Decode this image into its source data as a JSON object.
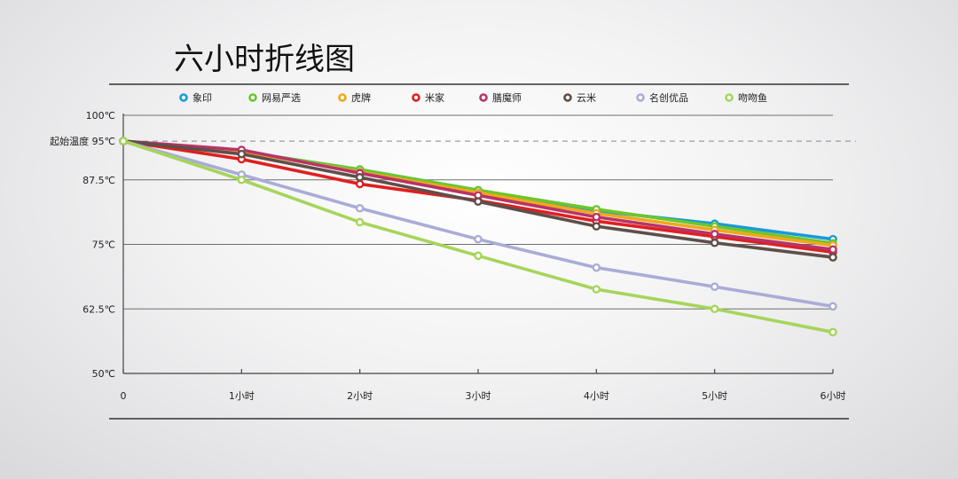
{
  "chart_data": {
    "type": "line",
    "title": "六小时折线图",
    "x": [
      "0",
      "1小时",
      "2小时",
      "3小时",
      "4小时",
      "5小时",
      "6小时"
    ],
    "ylim": [
      50,
      100
    ],
    "y_ticks": [
      {
        "value": 100,
        "label": "100℃"
      },
      {
        "value": 87.5,
        "label": "87.5℃"
      },
      {
        "value": 75,
        "label": "75℃"
      },
      {
        "value": 62.5,
        "label": "62.5℃"
      },
      {
        "value": 50,
        "label": "50℃"
      }
    ],
    "reference_line": {
      "value": 95,
      "label": "起始温度 95℃",
      "style": "dashed"
    },
    "grid": true,
    "legend_placement": "top",
    "series": [
      {
        "name": "象印",
        "color": "#1a9ad6",
        "values": [
          95,
          93,
          89.5,
          85.5,
          81.5,
          79,
          76
        ]
      },
      {
        "name": "网易严选",
        "color": "#6cc62e",
        "values": [
          95,
          93,
          89.5,
          85.5,
          81.8,
          78.5,
          75.2
        ]
      },
      {
        "name": "虎牌",
        "color": "#f0a81a",
        "values": [
          95,
          93,
          89,
          85,
          81,
          77.8,
          74.8
        ]
      },
      {
        "name": "米家",
        "color": "#e01f1f",
        "values": [
          95,
          91.5,
          86.7,
          83.5,
          79.5,
          76.5,
          73.5
        ]
      },
      {
        "name": "膳魔师",
        "color": "#b8336a",
        "values": [
          95,
          93.3,
          88.8,
          84.5,
          80.3,
          77,
          74
        ]
      },
      {
        "name": "云米",
        "color": "#5e4f48",
        "values": [
          95,
          92.5,
          88,
          83.3,
          78.5,
          75.3,
          72.5
        ]
      },
      {
        "name": "名创优品",
        "color": "#a9acd6",
        "values": [
          95,
          88.5,
          82,
          76,
          70.5,
          66.8,
          63
        ]
      },
      {
        "name": "吻吻鱼",
        "color": "#a6d55a",
        "values": [
          95,
          87.5,
          79.3,
          72.8,
          66.3,
          62.5,
          58
        ]
      }
    ]
  }
}
